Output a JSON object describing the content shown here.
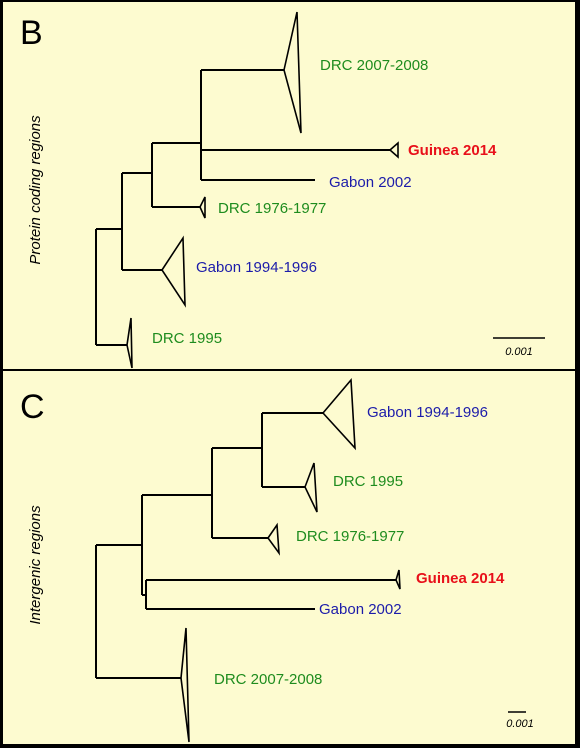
{
  "colors": {
    "background": "#fdfbd0",
    "border": "#000000",
    "green": "#1e8c1e",
    "blue": "#1c1caa",
    "red": "#e8101a",
    "line": "#000000"
  },
  "panels": [
    {
      "letter": "B",
      "side_label": "Protein coding regions",
      "scale_label": "0.001",
      "clades": [
        {
          "label": "DRC 2007-2008",
          "color": "green"
        },
        {
          "label": "Guinea 2014",
          "color": "red"
        },
        {
          "label": "Gabon 2002",
          "color": "blue"
        },
        {
          "label": "DRC 1976-1977",
          "color": "green"
        },
        {
          "label": "Gabon 1994-1996",
          "color": "blue"
        },
        {
          "label": "DRC 1995",
          "color": "green"
        }
      ]
    },
    {
      "letter": "C",
      "side_label": "Intergenic regions",
      "scale_label": "0.001",
      "clades": [
        {
          "label": "Gabon 1994-1996",
          "color": "blue"
        },
        {
          "label": "DRC 1995",
          "color": "green"
        },
        {
          "label": "DRC 1976-1977",
          "color": "green"
        },
        {
          "label": "Guinea 2014",
          "color": "red"
        },
        {
          "label": "Gabon 2002",
          "color": "blue"
        },
        {
          "label": "DRC 2007-2008",
          "color": "green"
        }
      ]
    }
  ]
}
